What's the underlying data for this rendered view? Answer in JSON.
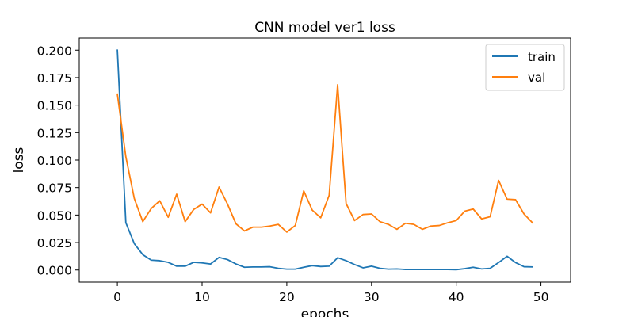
{
  "chart_data": {
    "type": "line",
    "title": "CNN model ver1 loss",
    "xlabel": "epochs",
    "ylabel": "loss",
    "xlim": [
      -4.5,
      53.5
    ],
    "ylim": [
      -0.011,
      0.211
    ],
    "xticks": [
      0,
      10,
      20,
      30,
      40,
      50
    ],
    "xtick_labels": [
      "0",
      "10",
      "20",
      "30",
      "40",
      "50"
    ],
    "yticks": [
      0.0,
      0.025,
      0.05,
      0.075,
      0.1,
      0.125,
      0.15,
      0.175,
      0.2
    ],
    "ytick_labels": [
      "0.000",
      "0.025",
      "0.050",
      "0.075",
      "0.100",
      "0.125",
      "0.150",
      "0.175",
      "0.200"
    ],
    "grid": false,
    "legend_position": "top-right",
    "x": [
      0,
      1,
      2,
      3,
      4,
      5,
      6,
      7,
      8,
      9,
      10,
      11,
      12,
      13,
      14,
      15,
      16,
      17,
      18,
      19,
      20,
      21,
      22,
      23,
      24,
      25,
      26,
      27,
      28,
      29,
      30,
      31,
      32,
      33,
      34,
      35,
      36,
      37,
      38,
      39,
      40,
      41,
      42,
      43,
      44,
      45,
      46,
      47,
      48,
      49
    ],
    "series": [
      {
        "name": "train",
        "color": "#1f77b4",
        "values": [
          0.2,
          0.043,
          0.024,
          0.014,
          0.009,
          0.0085,
          0.007,
          0.0035,
          0.0035,
          0.007,
          0.0065,
          0.0055,
          0.0115,
          0.0095,
          0.0055,
          0.0025,
          0.0028,
          0.0028,
          0.003,
          0.0015,
          0.0008,
          0.0008,
          0.0025,
          0.004,
          0.0032,
          0.0035,
          0.0112,
          0.0085,
          0.005,
          0.002,
          0.0035,
          0.0015,
          0.0008,
          0.001,
          0.0005,
          0.0005,
          0.0005,
          0.0005,
          0.0005,
          0.0005,
          0.0003,
          0.0012,
          0.0025,
          0.001,
          0.0015,
          0.0068,
          0.0125,
          0.0068,
          0.003,
          0.0028
        ]
      },
      {
        "name": "val",
        "color": "#ff7f0e",
        "values": [
          0.16,
          0.103,
          0.065,
          0.044,
          0.056,
          0.063,
          0.048,
          0.069,
          0.044,
          0.055,
          0.06,
          0.052,
          0.0755,
          0.06,
          0.042,
          0.0355,
          0.039,
          0.039,
          0.04,
          0.0415,
          0.0345,
          0.0405,
          0.072,
          0.0545,
          0.0475,
          0.068,
          0.1685,
          0.0605,
          0.045,
          0.0505,
          0.051,
          0.044,
          0.0415,
          0.037,
          0.0425,
          0.0415,
          0.037,
          0.04,
          0.0405,
          0.043,
          0.045,
          0.0535,
          0.0555,
          0.0465,
          0.0485,
          0.0815,
          0.0645,
          0.064,
          0.051,
          0.043
        ]
      }
    ]
  }
}
